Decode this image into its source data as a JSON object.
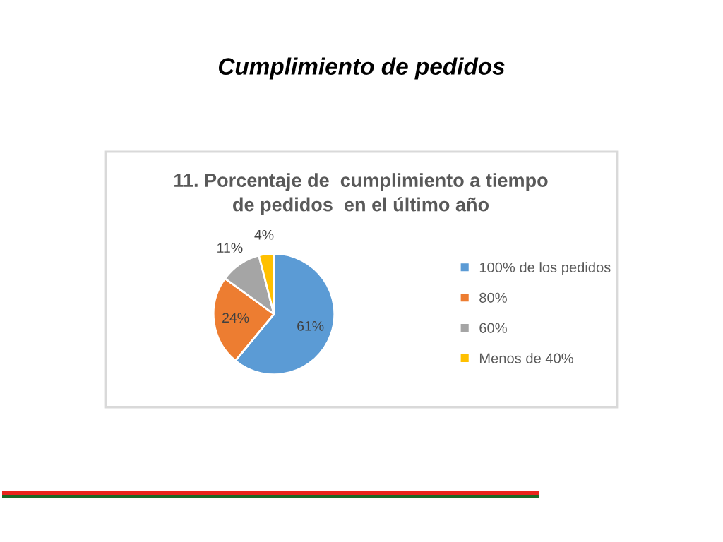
{
  "chart_data": {
    "type": "pie",
    "title": "Cumplimiento de pedidos",
    "subtitle": "11. Porcentaje de  cumplimiento a tiempo\nde pedidos  en el último año",
    "categories": [
      "100% de los pedidos",
      "80%",
      "60%",
      "Menos de 40%"
    ],
    "values": [
      61,
      24,
      11,
      4
    ],
    "colors": [
      "#5b9bd5",
      "#ed7d31",
      "#a5a5a5",
      "#ffc000"
    ],
    "value_labels": [
      "61%",
      "24%",
      "11%",
      "4%"
    ],
    "legend": "right"
  }
}
